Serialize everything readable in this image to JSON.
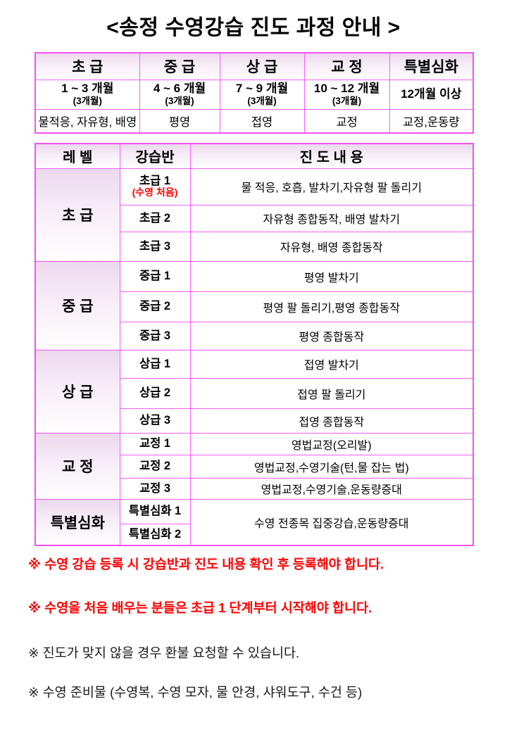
{
  "title": "<송정 수영강습 진도 과정 안내 >",
  "overview_table": {
    "columns": [
      {
        "level": "초 급",
        "period": "1 ~ 3 개월",
        "period_sub": "(3개월)",
        "content": "물적응, 자유형, 배영"
      },
      {
        "level": "중 급",
        "period": "4 ~ 6 개월",
        "period_sub": "(3개월)",
        "content": "평영"
      },
      {
        "level": "상 급",
        "period": "7 ~ 9 개월",
        "period_sub": "(3개월)",
        "content": "접영"
      },
      {
        "level": "교 정",
        "period": "10 ~ 12 개월",
        "period_sub": "(3개월)",
        "content": "교정"
      },
      {
        "level": "특별심화",
        "period": "12개월 이상",
        "period_sub": "",
        "content": "교정,운동량"
      }
    ]
  },
  "progress_table": {
    "headers": {
      "level": "레 벨",
      "class": "강습반",
      "content": "진 도 내 용"
    },
    "groups": [
      {
        "level": "초 급",
        "rows": [
          {
            "class": "초급 1",
            "class_note": "(수영 처음)",
            "content": "물 적응, 호흡, 발차기,자유형 팔 돌리기"
          },
          {
            "class": "초급 2",
            "content": "자유형 종합동작, 배영 발차기"
          },
          {
            "class": "초급 3",
            "content": "자유형, 배영 종합동작"
          }
        ]
      },
      {
        "level": "중 급",
        "rows": [
          {
            "class": "중급 1",
            "content": "평영 발차기"
          },
          {
            "class": "중급 2",
            "content": "평영 팔 돌리기,평영 종합동작"
          },
          {
            "class": "중급 3",
            "content": "평영 종합동작"
          }
        ]
      },
      {
        "level": "상 급",
        "rows": [
          {
            "class": "상급 1",
            "content": "접영 발차기"
          },
          {
            "class": "상급 2",
            "content": "접영 팔 돌리기"
          },
          {
            "class": "상급 3",
            "content": "접영 종합동작"
          }
        ]
      },
      {
        "level": "교 정",
        "rows": [
          {
            "class": "교정 1",
            "content": "영법교정(오리발)"
          },
          {
            "class": "교정 2",
            "content": "영법교정,수영기술(턴,물 잡는 법)"
          },
          {
            "class": "교정 3",
            "content": "영법교정,수영기술,운동량증대"
          }
        ]
      },
      {
        "level": "특별심화",
        "merged_content": "수영 전종목 집중강습,운동량증대",
        "rows": [
          {
            "class": "특별심화 1"
          },
          {
            "class": "특별심화 2"
          }
        ]
      }
    ]
  },
  "notes": [
    {
      "text": "※ 수영 강습 등록 시 강습반과 진도 내용 확인 후 등록해야 합니다.",
      "emphasis": true
    },
    {
      "text": "※ 수영을 처음 배우는 분들은 초급 1 단계부터 시작해야 합니다.",
      "emphasis": true
    },
    {
      "text": "※ 진도가 맞지 않을 경우 환불 요청할 수 있습니다.",
      "emphasis": false
    },
    {
      "text": "※ 수영 준비물 (수영복, 수영 모자, 물 안경, 샤워도구, 수건 등)",
      "emphasis": false
    }
  ],
  "colors": {
    "table_border": "#F85CF8",
    "emphasis_red": "#FF0000",
    "header_gradient_top": "#ECD8ED",
    "text": "#000000"
  }
}
